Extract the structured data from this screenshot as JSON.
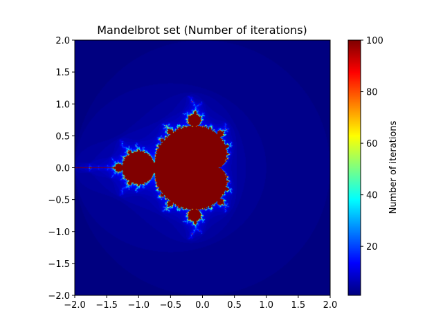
{
  "chart_data": {
    "type": "heatmap",
    "title": "Mandelbrot set (Number of iterations)",
    "xlabel": "",
    "ylabel": "",
    "xlim": [
      -2.0,
      2.0
    ],
    "ylim": [
      -2.0,
      2.0
    ],
    "x_ticks": [
      "−2.0",
      "−1.5",
      "−1.0",
      "−0.5",
      "0.0",
      "0.5",
      "1.0",
      "1.5",
      "2.0"
    ],
    "x_tick_values": [
      -2.0,
      -1.5,
      -1.0,
      -0.5,
      0.0,
      0.5,
      1.0,
      1.5,
      2.0
    ],
    "y_ticks": [
      "2.0",
      "1.5",
      "1.0",
      "0.5",
      "0.0",
      "−0.5",
      "−1.0",
      "−1.5",
      "−2.0"
    ],
    "y_tick_values": [
      2.0,
      1.5,
      1.0,
      0.5,
      0.0,
      -0.5,
      -1.0,
      -1.5,
      -2.0
    ],
    "max_iterations": 100,
    "colormap": "jet",
    "grid": false,
    "colorbar": {
      "label": "Number of iterations",
      "range": [
        1,
        100
      ],
      "ticks": [
        "20",
        "40",
        "60",
        "80",
        "100"
      ],
      "tick_values": [
        20,
        40,
        60,
        80,
        100
      ]
    }
  }
}
